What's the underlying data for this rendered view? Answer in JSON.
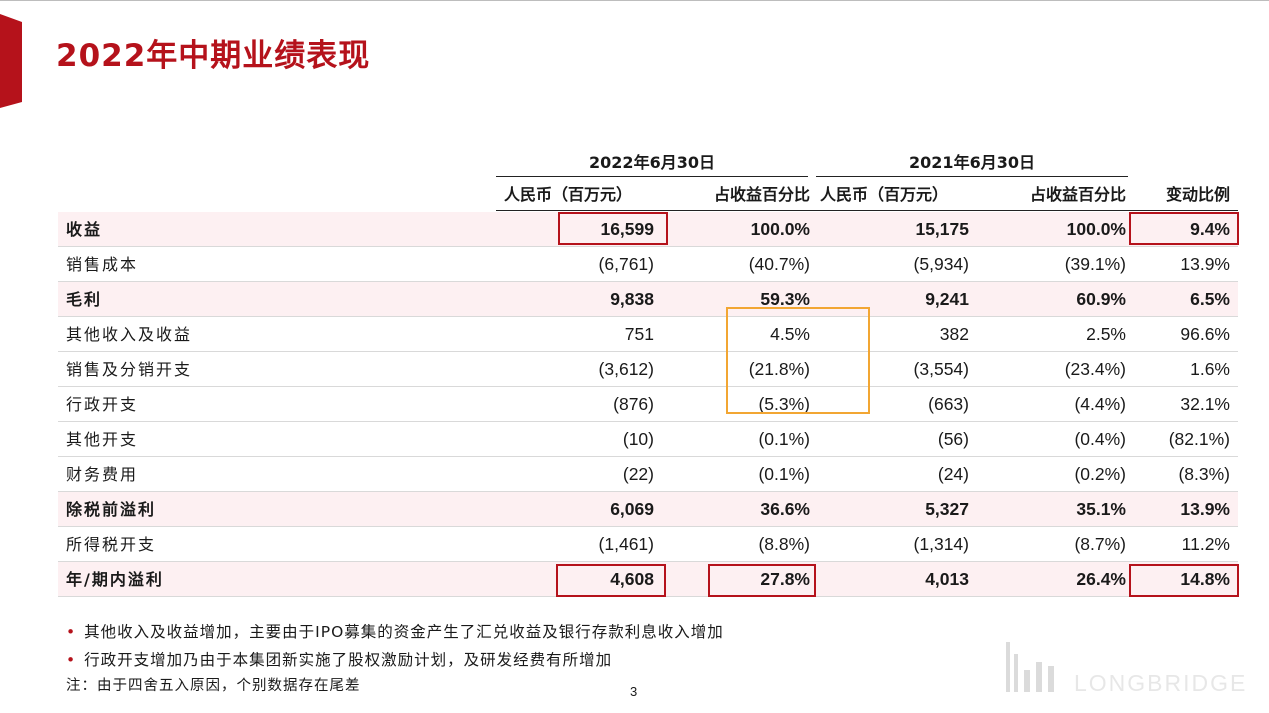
{
  "title": "2022年中期业绩表现",
  "table": {
    "group_headers": [
      "2022年6月30日",
      "2021年6月30日"
    ],
    "col_headers": [
      "人民币（百万元）",
      "占收益百分比",
      "人民币（百万元）",
      "占收益百分比",
      "变动比例"
    ],
    "rows": [
      {
        "label": "收益",
        "values": [
          "16,599",
          "100.0%",
          "15,175",
          "100.0%",
          "9.4%"
        ]
      },
      {
        "label": "销售成本",
        "values": [
          "(6,761)",
          "(40.7%)",
          "(5,934)",
          "(39.1%)",
          "13.9%"
        ]
      },
      {
        "label": "毛利",
        "values": [
          "9,838",
          "59.3%",
          "9,241",
          "60.9%",
          "6.5%"
        ]
      },
      {
        "label": "其他收入及收益",
        "values": [
          "751",
          "4.5%",
          "382",
          "2.5%",
          "96.6%"
        ]
      },
      {
        "label": "销售及分销开支",
        "values": [
          "(3,612)",
          "(21.8%)",
          "(3,554)",
          "(23.4%)",
          "1.6%"
        ]
      },
      {
        "label": "行政开支",
        "values": [
          "(876)",
          "(5.3%)",
          "(663)",
          "(4.4%)",
          "32.1%"
        ]
      },
      {
        "label": "其他开支",
        "values": [
          "(10)",
          "(0.1%)",
          "(56)",
          "(0.4%)",
          "(82.1%)"
        ]
      },
      {
        "label": "财务费用",
        "values": [
          "(22)",
          "(0.1%)",
          "(24)",
          "(0.2%)",
          "(8.3%)"
        ]
      },
      {
        "label": "除税前溢利",
        "values": [
          "6,069",
          "36.6%",
          "5,327",
          "35.1%",
          "13.9%"
        ]
      },
      {
        "label": "所得税开支",
        "values": [
          "(1,461)",
          "(8.8%)",
          "(1,314)",
          "(8.7%)",
          "11.2%"
        ]
      },
      {
        "label": "年/期内溢利",
        "values": [
          "4,608",
          "27.8%",
          "4,013",
          "26.4%",
          "14.8%"
        ]
      }
    ]
  },
  "notes": [
    "其他收入及收益增加，主要由于IPO募集的资金产生了汇兑收益及银行存款利息收入增加",
    "行政开支增加乃由于本集团新实施了股权激励计划，及研发经费有所增加"
  ],
  "footnote": "注：由于四舍五入原因，个别数据存在尾差",
  "page_number": "3",
  "watermark": "LONGBRIDGE",
  "colors": {
    "accent": "#b5121b",
    "highlight_row": "#fdf0f2",
    "annotation_orange": "#f2a633"
  }
}
